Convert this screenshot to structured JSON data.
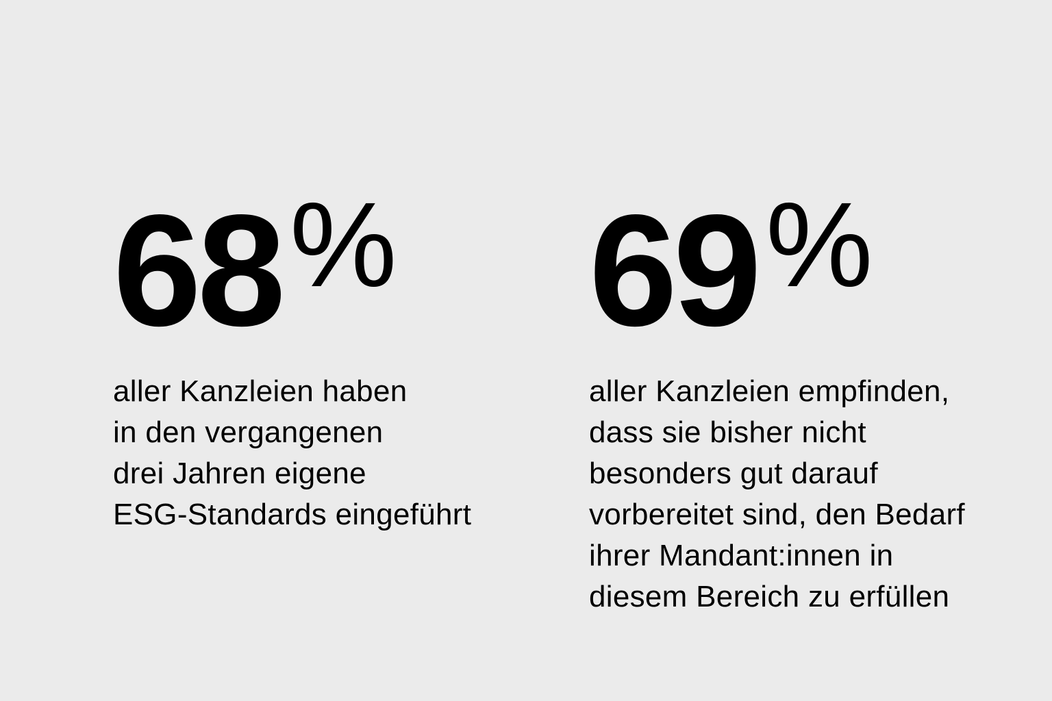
{
  "background_color": "#ebebeb",
  "stats": [
    {
      "value": "68",
      "unit": "%",
      "lines": [
        "aller Kanzleien haben",
        "in den vergangenen",
        "drei Jahren eigene",
        "ESG-Standards eingeführt"
      ]
    },
    {
      "value": "69",
      "unit": "%",
      "lines": [
        "aller Kanzleien empfinden,",
        "dass sie bisher nicht",
        "besonders gut darauf",
        "vorbereitet sind, den Bedarf",
        "ihrer Mandant:innen in",
        "diesem Bereich zu erfüllen"
      ]
    }
  ]
}
